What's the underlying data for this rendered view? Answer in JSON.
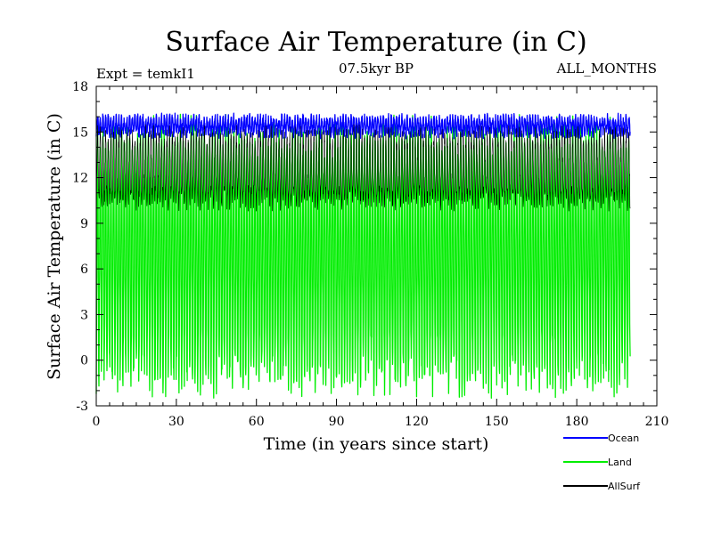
{
  "chart_data": {
    "type": "line",
    "title": "Surface Air Temperature (in C)",
    "subtitle_left": "Expt = temkI1",
    "subtitle_center": "07.5kyr BP",
    "subtitle_right": "ALL_MONTHS",
    "xlabel": "Time (in years since start)",
    "ylabel": "Surface Air Temperature (in C)",
    "xlim": [
      0,
      210
    ],
    "ylim": [
      -3,
      18
    ],
    "xticks": [
      0,
      30,
      60,
      90,
      120,
      150,
      180,
      210
    ],
    "yticks": [
      -3,
      0,
      3,
      6,
      9,
      12,
      15,
      18
    ],
    "x_end": 200,
    "series": [
      {
        "name": "Ocean",
        "color": "#0000ff",
        "seasonal_min": 14.9,
        "seasonal_max": 15.9
      },
      {
        "name": "Land",
        "color": "#00ee00",
        "seasonal_min": -1.0,
        "seasonal_max": 14.7
      },
      {
        "name": "AllSurf",
        "color": "#000000",
        "seasonal_min": 10.5,
        "seasonal_max": 14.8
      }
    ]
  }
}
